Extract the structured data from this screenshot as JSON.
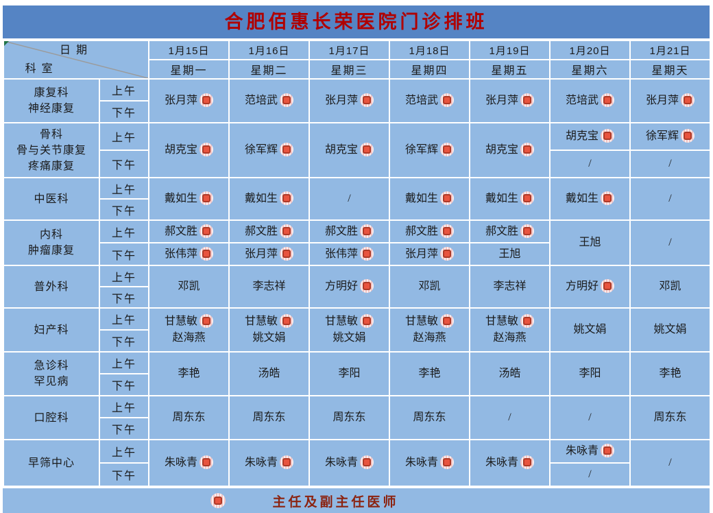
{
  "title": "合肥佰惠长荣医院门诊排班",
  "corner": {
    "date_label": "日期",
    "dept_label": "科室"
  },
  "session_labels": [
    "上午",
    "下午"
  ],
  "columns": [
    {
      "date": "1月15日",
      "weekday": "星期一"
    },
    {
      "date": "1月16日",
      "weekday": "星期二"
    },
    {
      "date": "1月17日",
      "weekday": "星期三"
    },
    {
      "date": "1月18日",
      "weekday": "星期四"
    },
    {
      "date": "1月19日",
      "weekday": "星期五"
    },
    {
      "date": "1月20日",
      "weekday": "星期六"
    },
    {
      "date": "1月21日",
      "weekday": "星期天"
    }
  ],
  "sections": [
    {
      "department": [
        "康复科",
        "神经康复"
      ],
      "cells": [
        {
          "m": [
            [
              "张月萍",
              1
            ]
          ]
        },
        {
          "m": [
            [
              "范培武",
              1
            ]
          ]
        },
        {
          "m": [
            [
              "张月萍",
              1
            ]
          ]
        },
        {
          "m": [
            [
              "范培武",
              1
            ]
          ]
        },
        {
          "m": [
            [
              "张月萍",
              1
            ]
          ]
        },
        {
          "m": [
            [
              "范培武",
              1
            ]
          ]
        },
        {
          "m": [
            [
              "张月萍",
              1
            ]
          ]
        }
      ]
    },
    {
      "department": [
        "骨科",
        "骨与关节康复",
        "疼痛康复"
      ],
      "cells": [
        {
          "m": [
            [
              "胡克宝",
              1
            ]
          ]
        },
        {
          "m": [
            [
              "徐军辉",
              1
            ]
          ]
        },
        {
          "m": [
            [
              "胡克宝",
              1
            ]
          ]
        },
        {
          "m": [
            [
              "徐军辉",
              1
            ]
          ]
        },
        {
          "m": [
            [
              "胡克宝",
              1
            ]
          ]
        },
        {
          "am": [
            "胡克宝",
            1
          ],
          "pm": [
            "/",
            0
          ]
        },
        {
          "am": [
            "徐军辉",
            1
          ],
          "pm": [
            "/",
            0
          ]
        }
      ]
    },
    {
      "department": [
        "中医科"
      ],
      "cells": [
        {
          "m": [
            [
              "戴如生",
              1
            ]
          ]
        },
        {
          "m": [
            [
              "戴如生",
              1
            ]
          ]
        },
        {
          "m": [
            [
              "/",
              0
            ]
          ]
        },
        {
          "m": [
            [
              "戴如生",
              1
            ]
          ]
        },
        {
          "m": [
            [
              "戴如生",
              1
            ]
          ]
        },
        {
          "m": [
            [
              "戴如生",
              1
            ]
          ]
        },
        {
          "m": [
            [
              "/",
              0
            ]
          ]
        }
      ]
    },
    {
      "department": [
        "内科",
        "肿瘤康复"
      ],
      "cells": [
        {
          "am": [
            "郝文胜",
            1
          ],
          "pm": [
            "张伟萍",
            1
          ]
        },
        {
          "am": [
            "郝文胜",
            1
          ],
          "pm": [
            "张月萍",
            1
          ]
        },
        {
          "am": [
            "郝文胜",
            1
          ],
          "pm": [
            "张伟萍",
            1
          ]
        },
        {
          "am": [
            "郝文胜",
            1
          ],
          "pm": [
            "张月萍",
            1
          ]
        },
        {
          "am": [
            "郝文胜",
            1
          ],
          "pm": [
            "王旭",
            0
          ]
        },
        {
          "m": [
            [
              "王旭",
              0
            ]
          ]
        },
        {
          "m": [
            [
              "/",
              0
            ]
          ]
        }
      ]
    },
    {
      "department": [
        "普外科"
      ],
      "cells": [
        {
          "m": [
            [
              "邓凯",
              0
            ]
          ]
        },
        {
          "m": [
            [
              "李志祥",
              0
            ]
          ]
        },
        {
          "m": [
            [
              "方明好",
              1
            ]
          ]
        },
        {
          "m": [
            [
              "邓凯",
              0
            ]
          ]
        },
        {
          "m": [
            [
              "李志祥",
              0
            ]
          ]
        },
        {
          "m": [
            [
              "方明好",
              1
            ]
          ]
        },
        {
          "m": [
            [
              "邓凯",
              0
            ]
          ]
        }
      ]
    },
    {
      "department": [
        "妇产科"
      ],
      "cells": [
        {
          "m": [
            [
              "甘慧敏",
              1
            ],
            [
              "赵海燕",
              0
            ]
          ]
        },
        {
          "m": [
            [
              "甘慧敏",
              1
            ],
            [
              "姚文娟",
              0
            ]
          ]
        },
        {
          "m": [
            [
              "甘慧敏",
              1
            ],
            [
              "姚文娟",
              0
            ]
          ]
        },
        {
          "m": [
            [
              "甘慧敏",
              1
            ],
            [
              "赵海燕",
              0
            ]
          ]
        },
        {
          "m": [
            [
              "甘慧敏",
              1
            ],
            [
              "赵海燕",
              0
            ]
          ]
        },
        {
          "m": [
            [
              "姚文娟",
              0
            ]
          ]
        },
        {
          "m": [
            [
              "姚文娟",
              0
            ]
          ]
        }
      ]
    },
    {
      "department": [
        "急诊科",
        "罕见病"
      ],
      "cells": [
        {
          "m": [
            [
              "李艳",
              0
            ]
          ]
        },
        {
          "m": [
            [
              "汤皓",
              0
            ]
          ]
        },
        {
          "m": [
            [
              "李阳",
              0
            ]
          ]
        },
        {
          "m": [
            [
              "李艳",
              0
            ]
          ]
        },
        {
          "m": [
            [
              "汤皓",
              0
            ]
          ]
        },
        {
          "m": [
            [
              "李阳",
              0
            ]
          ]
        },
        {
          "m": [
            [
              "李艳",
              0
            ]
          ]
        }
      ]
    },
    {
      "department": [
        "口腔科"
      ],
      "cells": [
        {
          "m": [
            [
              "周东东",
              0
            ]
          ]
        },
        {
          "m": [
            [
              "周东东",
              0
            ]
          ]
        },
        {
          "m": [
            [
              "周东东",
              0
            ]
          ]
        },
        {
          "m": [
            [
              "周东东",
              0
            ]
          ]
        },
        {
          "m": [
            [
              "/",
              0
            ]
          ]
        },
        {
          "m": [
            [
              "/",
              0
            ]
          ]
        },
        {
          "m": [
            [
              "周东东",
              0
            ]
          ]
        }
      ]
    },
    {
      "department": [
        "早筛中心"
      ],
      "cells": [
        {
          "m": [
            [
              "朱咏青",
              1
            ]
          ]
        },
        {
          "m": [
            [
              "朱咏青",
              1
            ]
          ]
        },
        {
          "m": [
            [
              "朱咏青",
              1
            ]
          ]
        },
        {
          "m": [
            [
              "朱咏青",
              1
            ]
          ]
        },
        {
          "m": [
            [
              "朱咏青",
              1
            ]
          ]
        },
        {
          "am": [
            "朱咏青",
            1
          ],
          "pm": [
            "/",
            0
          ]
        },
        {
          "m": [
            [
              "/",
              0
            ]
          ]
        }
      ]
    }
  ],
  "legend": {
    "label": "主任及副主任医师",
    "badge_meaning": "主任及副主任医师"
  },
  "colors": {
    "title_band": "#5584c4",
    "cell_blue": "#92b9e3",
    "grid_white": "#ffffff",
    "title_text": "#b00000",
    "legend_text": "#8b2310",
    "text_dark": "#1a1a1a",
    "badge_red": "#e8543f",
    "badge_border": "#ad3a28",
    "badge_pink": "#f3c4c4",
    "diagonal_gray": "#9b9b9b",
    "corner_flag_green": "#217346"
  }
}
